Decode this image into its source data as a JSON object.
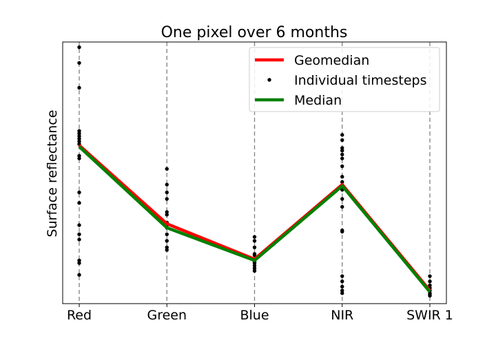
{
  "chart_data": {
    "type": "line",
    "title": "One pixel over 6 months",
    "xlabel": "",
    "ylabel": "Surface reflectance",
    "categories": [
      "Red",
      "Green",
      "Blue",
      "NIR",
      "SWIR 1"
    ],
    "ylim": [
      0,
      100
    ],
    "grid": "vertical dashed lines at each band",
    "legend_position": "upper-right",
    "series": [
      {
        "name": "Geomedian",
        "type": "line",
        "color": "#ff0000",
        "values": [
          60.5,
          30.5,
          17,
          45.5,
          5
        ]
      },
      {
        "name": "Individual timesteps",
        "type": "scatter",
        "color": "#000000",
        "points": [
          [
            0,
            98
          ],
          [
            0,
            92
          ],
          [
            0,
            82.5
          ],
          [
            0,
            66
          ],
          [
            0,
            65
          ],
          [
            0,
            64
          ],
          [
            0,
            63
          ],
          [
            0,
            62
          ],
          [
            0,
            61
          ],
          [
            0,
            56.5
          ],
          [
            0,
            55.5
          ],
          [
            0,
            42.5
          ],
          [
            0,
            38.5
          ],
          [
            0,
            30
          ],
          [
            0,
            26.5
          ],
          [
            0,
            24.5
          ],
          [
            0,
            16.5
          ],
          [
            0,
            15.5
          ],
          [
            0,
            11
          ],
          [
            1,
            51.5
          ],
          [
            1,
            45.5
          ],
          [
            1,
            42.5
          ],
          [
            1,
            40
          ],
          [
            1,
            35
          ],
          [
            1,
            34
          ],
          [
            1,
            31
          ],
          [
            1,
            30
          ],
          [
            1,
            29
          ],
          [
            1,
            26.5
          ],
          [
            1,
            24
          ],
          [
            1,
            21.5
          ],
          [
            1,
            20.5
          ],
          [
            2,
            25.5
          ],
          [
            2,
            24
          ],
          [
            2,
            21.5
          ],
          [
            2,
            19
          ],
          [
            2,
            18.5
          ],
          [
            2,
            17
          ],
          [
            2,
            16
          ],
          [
            2,
            15.5
          ],
          [
            2,
            14.5
          ],
          [
            2,
            13.5
          ],
          [
            2,
            12.5
          ],
          [
            3,
            64.5
          ],
          [
            3,
            62.5
          ],
          [
            3,
            59.5
          ],
          [
            3,
            58.5
          ],
          [
            3,
            57
          ],
          [
            3,
            55.5
          ],
          [
            3,
            52.5
          ],
          [
            3,
            48.5
          ],
          [
            3,
            46.5
          ],
          [
            3,
            43.5
          ],
          [
            3,
            40
          ],
          [
            3,
            37
          ],
          [
            3,
            28
          ],
          [
            3,
            27.5
          ],
          [
            3,
            10.5
          ],
          [
            3,
            8.5
          ],
          [
            3,
            6.5
          ],
          [
            3,
            5
          ],
          [
            3,
            4
          ],
          [
            4,
            10.5
          ],
          [
            4,
            8.5
          ],
          [
            4,
            7
          ],
          [
            4,
            6
          ],
          [
            4,
            5
          ],
          [
            4,
            4
          ],
          [
            4,
            3.5
          ],
          [
            4,
            3
          ]
        ]
      },
      {
        "name": "Median",
        "type": "line",
        "color": "#008000",
        "values": [
          60,
          29,
          16.5,
          45,
          4.5
        ]
      }
    ]
  }
}
